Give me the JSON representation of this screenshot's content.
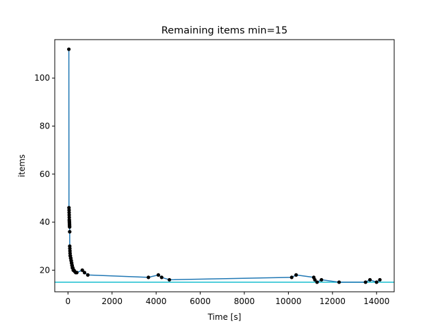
{
  "chart_data": {
    "type": "line",
    "title": "Remaining items min=15",
    "xlabel": "Time [s]",
    "ylabel": "items",
    "xlim": [
      -600,
      14800
    ],
    "ylim": [
      11,
      116
    ],
    "xticks": [
      0,
      2000,
      4000,
      6000,
      8000,
      10000,
      12000,
      14000
    ],
    "yticks": [
      20,
      40,
      60,
      80,
      100
    ],
    "grid": false,
    "series": [
      {
        "style": "line-with-markers",
        "line_color": "#1f77b4",
        "marker_color": "#000000",
        "x": [
          40,
          45,
          50,
          52,
          55,
          58,
          60,
          62,
          65,
          68,
          70,
          72,
          75,
          78,
          80,
          85,
          90,
          95,
          100,
          110,
          120,
          130,
          140,
          150,
          160,
          170,
          180,
          190,
          200,
          220,
          240,
          270,
          300,
          350,
          400,
          650,
          750,
          900,
          3650,
          4100,
          4250,
          4600,
          10150,
          10350,
          11150,
          11200,
          11300,
          11500,
          12300,
          13500,
          13700,
          14000,
          14150
        ],
        "y": [
          112,
          46,
          45,
          44,
          43,
          42,
          41,
          40.5,
          40,
          39.5,
          39,
          38.5,
          38,
          36,
          30,
          29,
          28,
          27,
          26,
          26,
          25,
          25,
          24,
          24,
          23,
          23,
          22,
          22,
          21,
          21,
          20,
          20,
          19.5,
          19,
          19,
          20,
          19,
          18,
          17,
          18,
          17,
          16,
          17,
          18,
          17,
          16,
          15,
          16,
          15,
          15,
          16,
          15,
          16
        ]
      },
      {
        "style": "horizontal-line",
        "color": "#17becf",
        "y": 15
      }
    ]
  }
}
